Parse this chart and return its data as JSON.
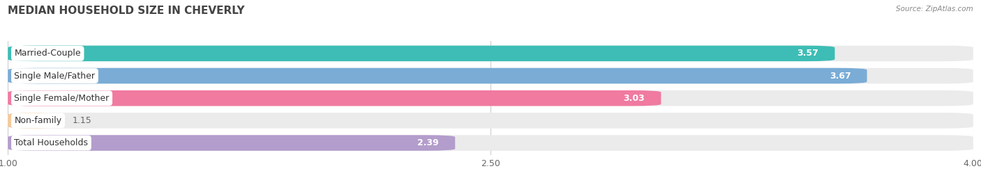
{
  "title": "MEDIAN HOUSEHOLD SIZE IN CHEVERLY",
  "source": "Source: ZipAtlas.com",
  "categories": [
    "Married-Couple",
    "Single Male/Father",
    "Single Female/Mother",
    "Non-family",
    "Total Households"
  ],
  "values": [
    3.57,
    3.67,
    3.03,
    1.15,
    2.39
  ],
  "bar_colors": [
    "#3dbdb5",
    "#7aacd6",
    "#f07aa0",
    "#f5c99a",
    "#b39dcc"
  ],
  "xmin": 1.0,
  "xmax": 4.0,
  "xticks": [
    1.0,
    2.5,
    4.0
  ],
  "xtick_labels": [
    "1.00",
    "2.50",
    "4.00"
  ],
  "bg_color": "#ffffff",
  "bar_bg_color": "#ebebeb",
  "title_fontsize": 11,
  "label_fontsize": 9,
  "value_fontsize": 9,
  "value_inside_color": "white",
  "value_outside_color": "#666666"
}
